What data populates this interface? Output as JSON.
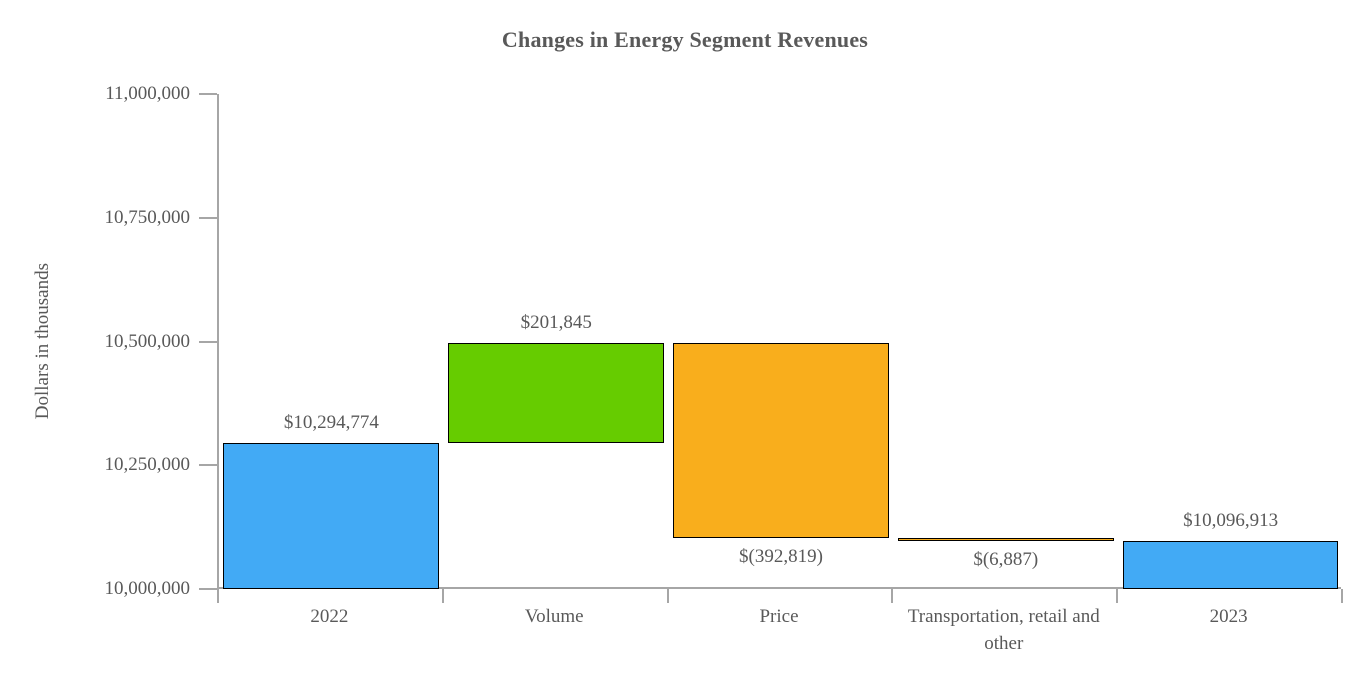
{
  "chart_data": {
    "type": "waterfall",
    "title": "Changes in Energy Segment Revenues",
    "ylabel": "Dollars in thousands",
    "ylim": [
      10000000,
      11000000
    ],
    "grid": false,
    "legend": "none",
    "yticks": [
      {
        "value": 11000000,
        "label": "11,000,000"
      },
      {
        "value": 10750000,
        "label": "10,750,000"
      },
      {
        "value": 10500000,
        "label": "10,500,000"
      },
      {
        "value": 10250000,
        "label": "10,250,000"
      },
      {
        "value": 10000000,
        "label": "10,000,000"
      }
    ],
    "categories": [
      "2022",
      "Volume",
      "Price",
      "Transportation, retail and other",
      "2023"
    ],
    "bars": [
      {
        "category": "2022",
        "kind": "total",
        "start": 10000000,
        "end": 10294774,
        "value": 10294774,
        "label": "$10,294,774",
        "label_position": "above",
        "color": "#42aaf5"
      },
      {
        "category": "Volume",
        "kind": "increase",
        "start": 10294774,
        "end": 10496619,
        "value": 201845,
        "label": "$201,845",
        "label_position": "above",
        "color": "#66cc00"
      },
      {
        "category": "Price",
        "kind": "decrease",
        "start": 10496619,
        "end": 10103800,
        "value": -392819,
        "label": "$(392,819)",
        "label_position": "below",
        "color": "#f9ae1c"
      },
      {
        "category": "Transportation, retail and other",
        "kind": "decrease",
        "start": 10103800,
        "end": 10096913,
        "value": -6887,
        "label": "$(6,887)",
        "label_position": "below",
        "color": "#f9ae1c"
      },
      {
        "category": "2023",
        "kind": "total",
        "start": 10000000,
        "end": 10096913,
        "value": 10096913,
        "label": "$10,096,913",
        "label_position": "above",
        "color": "#42aaf5"
      }
    ],
    "colors": {
      "total": "#42aaf5",
      "increase": "#66cc00",
      "decrease": "#f9ae1c",
      "bar_border": "#000000",
      "axis": "#a6a6a6",
      "text": "#595959"
    }
  }
}
